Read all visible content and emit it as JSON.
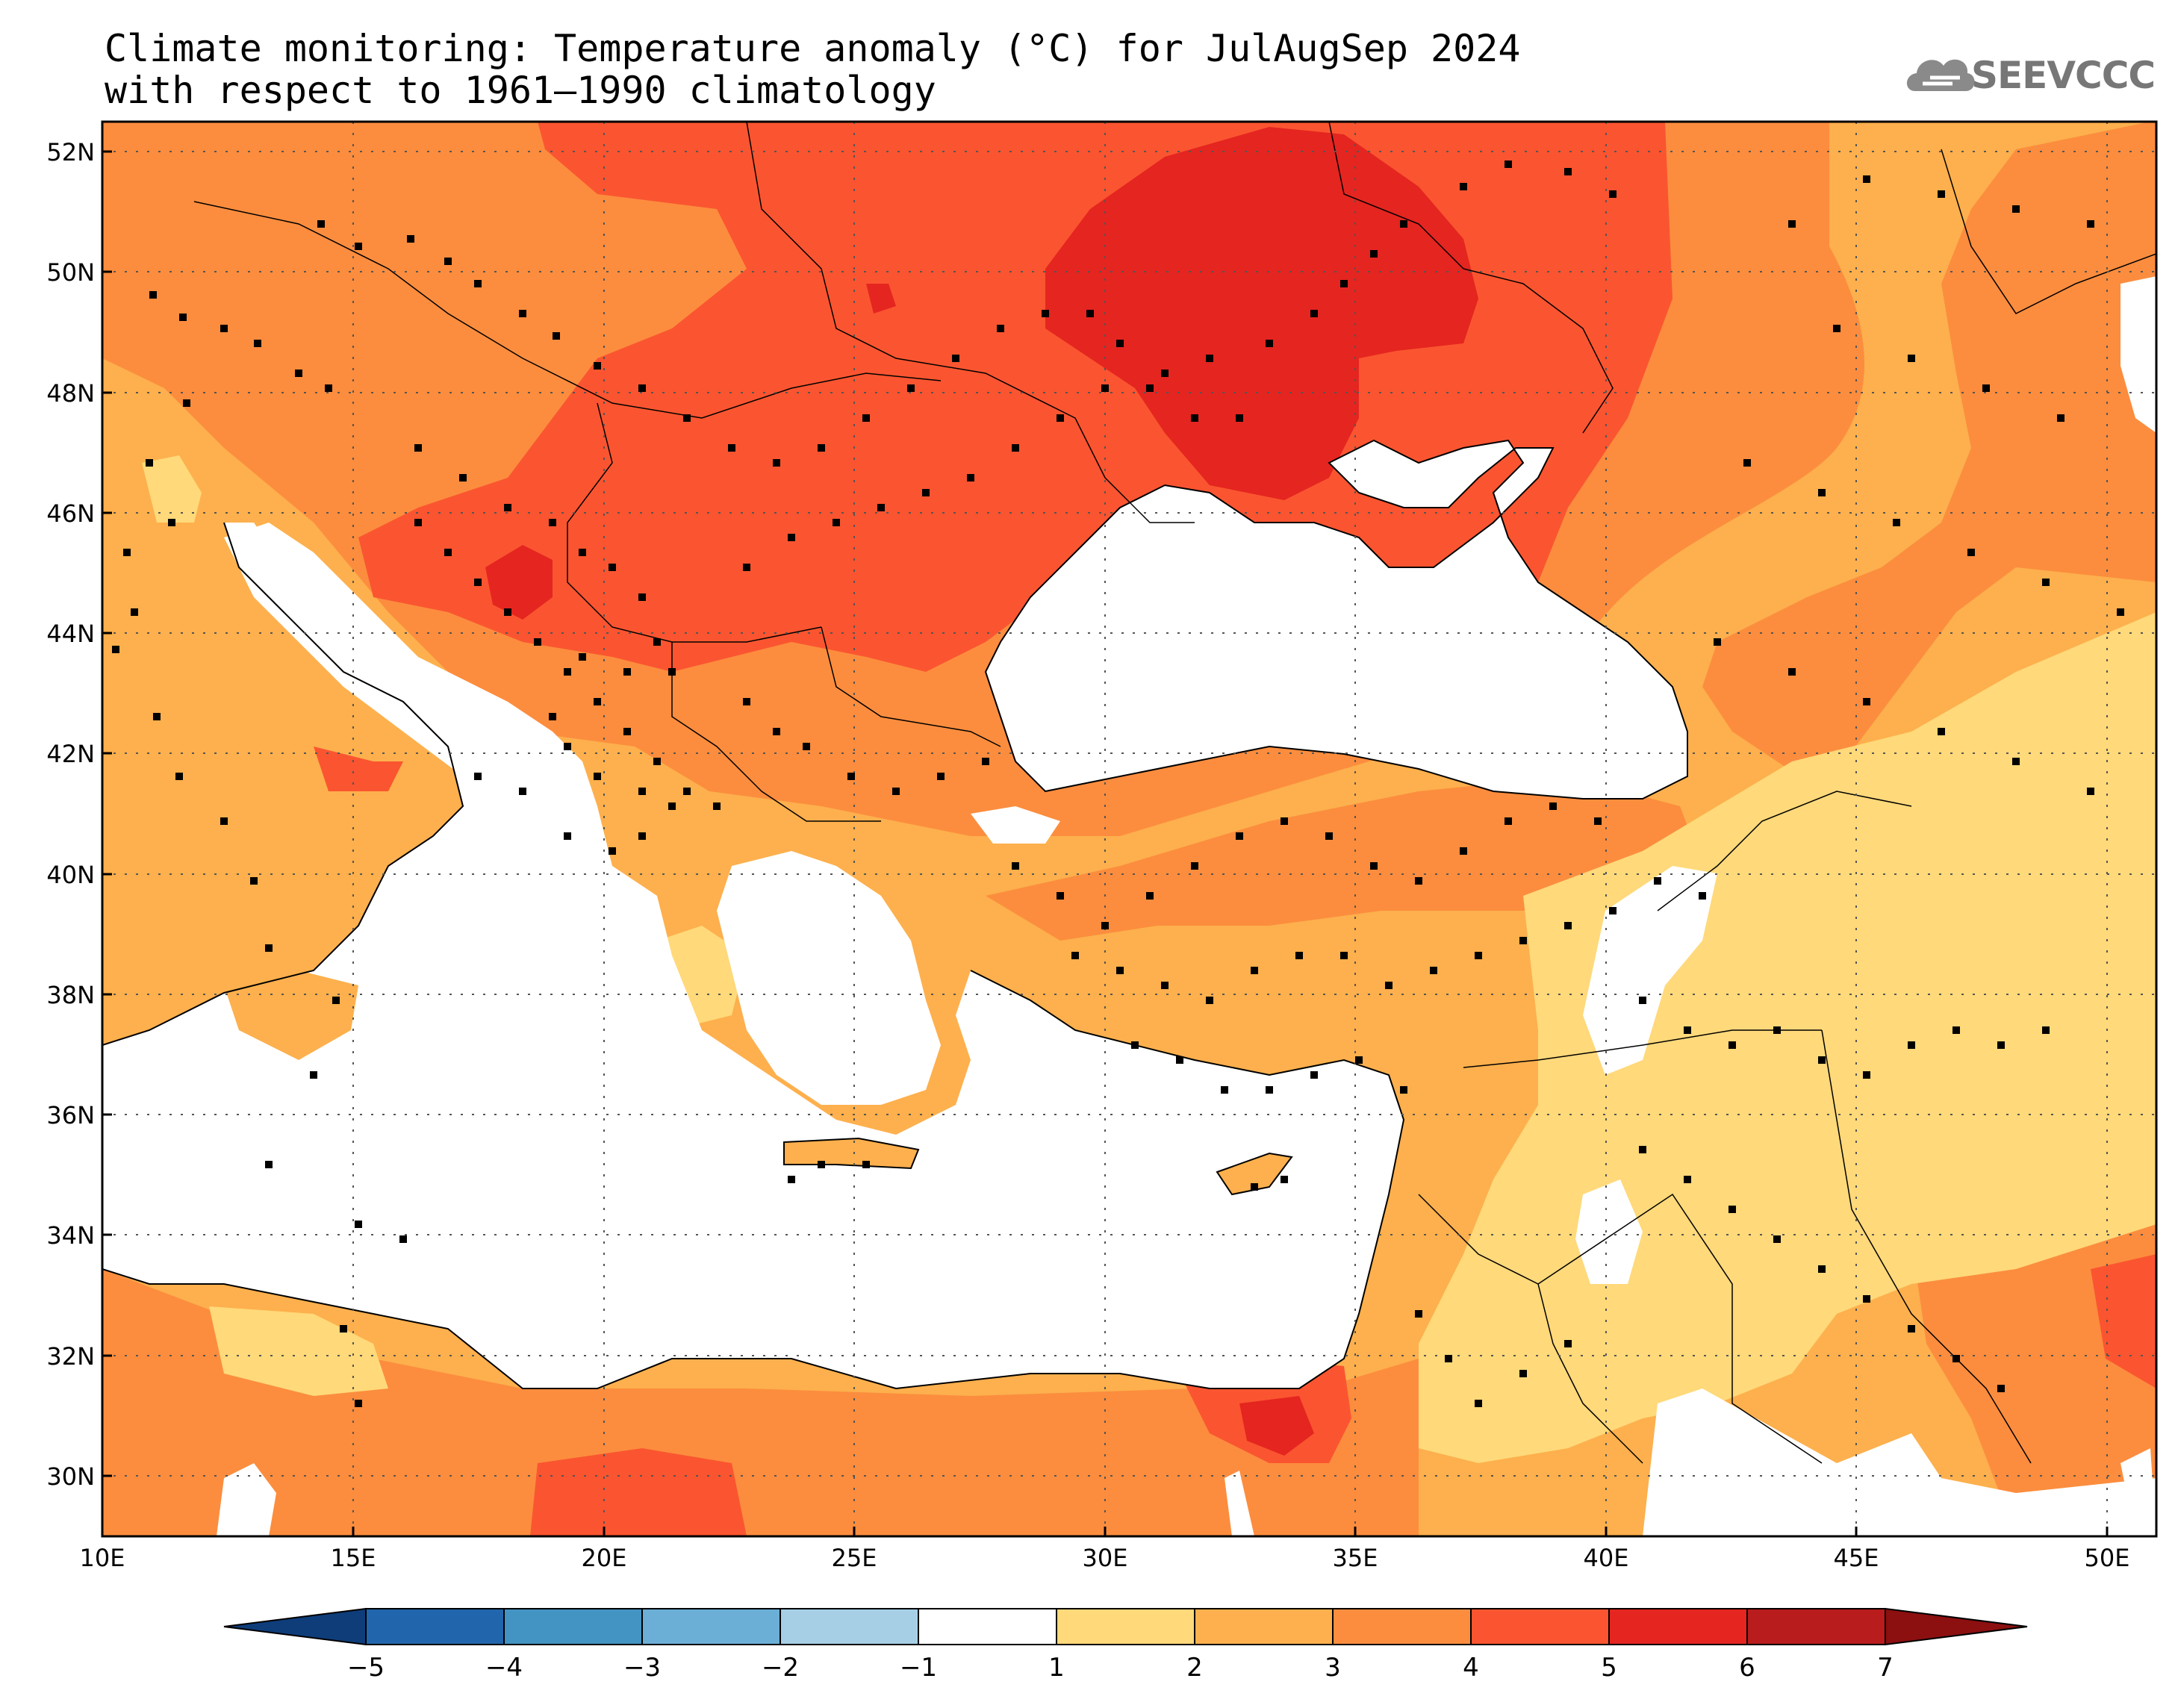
{
  "title": {
    "line1": "Climate monitoring: Temperature anomaly (°C) for JulAugSep 2024",
    "line2": "with respect to 1961–1990 climatology"
  },
  "logo": {
    "text": "SEEVCCC",
    "icon": "cloud-icon"
  },
  "map": {
    "lon_range": [
      10,
      51
    ],
    "lat_range": [
      29,
      52.5
    ],
    "lat_ticks": [
      "52N",
      "50N",
      "48N",
      "46N",
      "44N",
      "42N",
      "40N",
      "38N",
      "36N",
      "34N",
      "32N",
      "30N"
    ],
    "lon_ticks": [
      "10E",
      "15E",
      "20E",
      "25E",
      "30E",
      "35E",
      "40E",
      "45E",
      "50E"
    ],
    "grid": "dotted"
  },
  "colorbar": {
    "labels": [
      "-5",
      "-4",
      "-3",
      "-2",
      "-1",
      "1",
      "2",
      "3",
      "4",
      "5",
      "6",
      "7"
    ],
    "colors": [
      "#0e3d7a",
      "#2166ac",
      "#4393c3",
      "#6bafd6",
      "#a6cfe6",
      "#ffffff",
      "#ffd97a",
      "#fdb04d",
      "#fc8d3e",
      "#fa5530",
      "#e52520",
      "#b81c1c",
      "#8c1010"
    ]
  },
  "palette": {
    "a1_2": "#ffd97a",
    "a2_3": "#fdb04d",
    "a3_4": "#fc8d3e",
    "a4_5": "#fa5530",
    "a5_6": "#e52520",
    "sea": "#ffffff"
  }
}
